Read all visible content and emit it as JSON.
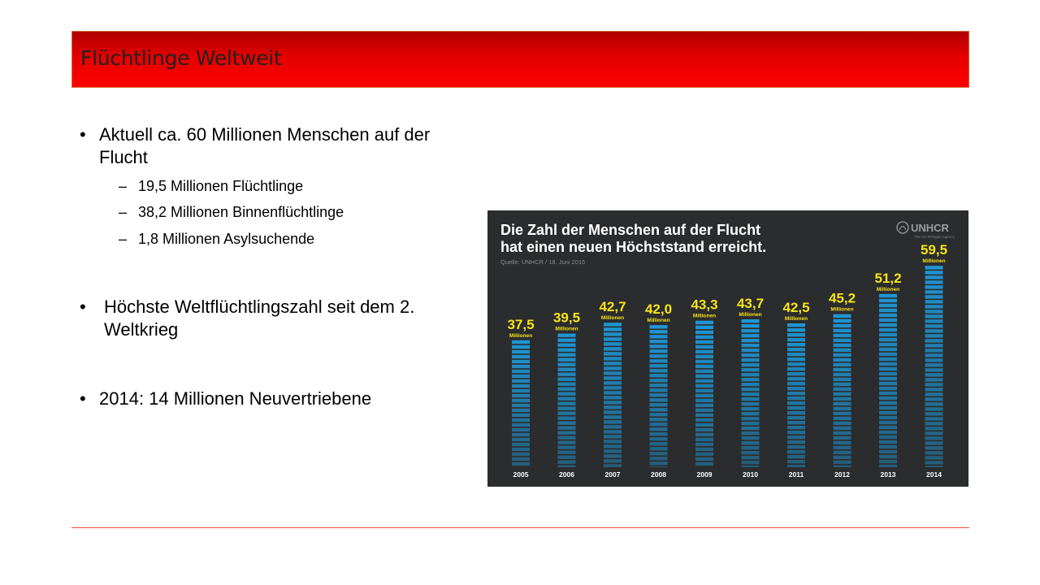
{
  "slide": {
    "title": "Flüchtlinge Weltweit",
    "bullets": [
      {
        "text": "Aktuell ca. 60 Millionen Menschen auf der Flucht"
      },
      {
        "text": "19,5 Millionen Flüchtlinge"
      },
      {
        "text": "38,2 Millionen Binnenflüchtlinge"
      },
      {
        "text": "1,8 Millionen Asylsuchende"
      },
      {
        "text": "Höchste Weltflüchtlingszahl seit dem 2. Weltkrieg"
      },
      {
        "text": "2014: 14 Millionen Neuvertriebene"
      }
    ],
    "bullet_glyph": "•",
    "dash_glyph": "–"
  },
  "chart_data": {
    "type": "bar",
    "title": "Die Zahl der Menschen auf der Flucht hat einen neuen Höchststand erreicht.",
    "title_lines": [
      "Die Zahl der Menschen auf der Flucht",
      "hat einen neuen Höchststand erreicht."
    ],
    "source": "Quelle: UNHCR / 18. Juni 2015",
    "logo": "UNHCR",
    "logo_sub": "The UN Refugee Agency",
    "categories": [
      "2005",
      "2006",
      "2007",
      "2008",
      "2009",
      "2010",
      "2011",
      "2012",
      "2013",
      "2014"
    ],
    "values": [
      37.5,
      39.5,
      42.7,
      42.0,
      43.3,
      43.7,
      42.5,
      45.2,
      51.2,
      59.5
    ],
    "value_labels": [
      "37,5",
      "39,5",
      "42,7",
      "42,0",
      "43,3",
      "43,7",
      "42,5",
      "45,2",
      "51,2",
      "59,5"
    ],
    "unit_label": "Millionen",
    "colors": {
      "background": "#2b2c2e",
      "bar": "#1f96d3",
      "value_text": "#f6e516",
      "text": "#ffffff",
      "muted": "#8a8c8f"
    }
  }
}
